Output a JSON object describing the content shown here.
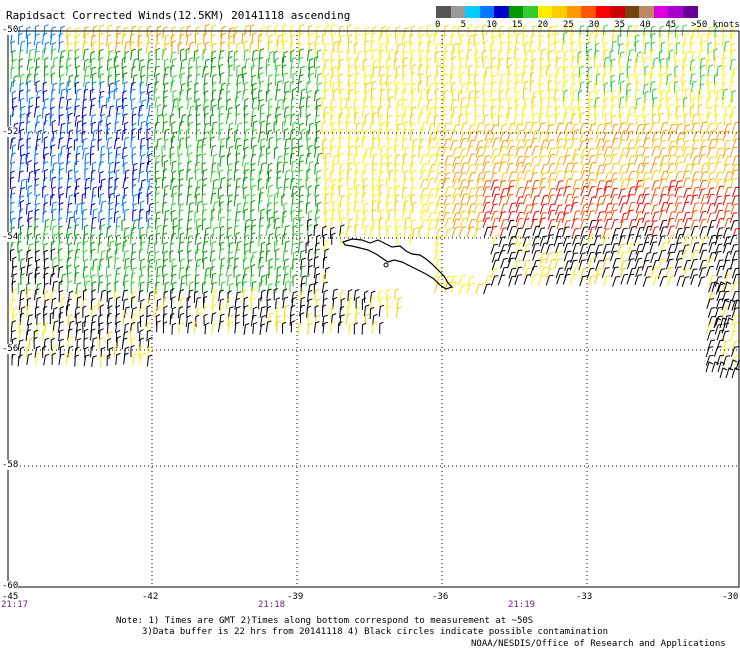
{
  "title": "Rapidsact Corrected Winds(12.5KM) 20141118 ascending",
  "legend": {
    "labels": [
      "0",
      "5",
      "10",
      "15",
      "20",
      "25",
      "30",
      "35",
      "40",
      "45",
      ">50 knots"
    ],
    "colors": [
      "#555555",
      "#9a9a9a",
      "#00ccff",
      "#0077ff",
      "#0000cc",
      "#009900",
      "#33cc33",
      "#ffee00",
      "#ffcc00",
      "#ff9900",
      "#ff5500",
      "#ff0000",
      "#cc0000",
      "#774411",
      "#bb8866",
      "#dd00dd",
      "#aa00cc",
      "#660099"
    ]
  },
  "lat_labels": [
    "-50",
    "-52",
    "-54",
    "-56",
    "-58",
    "-60"
  ],
  "lon_labels": [
    "-45",
    "-42",
    "-39",
    "-36",
    "-33",
    "-30"
  ],
  "time_labels": [
    "21:17",
    "21:18",
    "21:19"
  ],
  "notes": [
    "Note: 1) Times are GMT 2)Times along bottom correspond to measurement at ~50S",
    "3)Data buffer is 22 hrs from 20141118 4) Black circles indicate possible contamination"
  ],
  "credit": "NOAA/NESDIS/Office of Research and Applications",
  "colors": {
    "grid": "#000000",
    "coast": "#000000"
  }
}
